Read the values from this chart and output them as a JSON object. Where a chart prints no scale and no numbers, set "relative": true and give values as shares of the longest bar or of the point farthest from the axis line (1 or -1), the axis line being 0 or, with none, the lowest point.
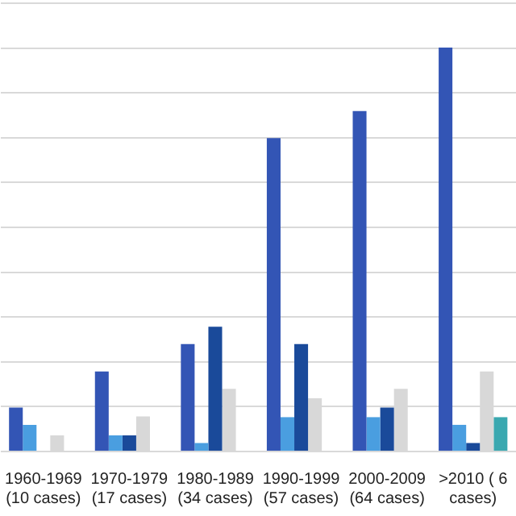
{
  "chart_data": {
    "type": "bar",
    "relative": true,
    "grid": "y",
    "legend": false,
    "tick_labels": "x",
    "categories": [
      "1960-1969\n(10 cases)",
      "1970-1979\n(17 cases)",
      "1980-1989\n(34 cases)",
      "1990-1999\n(57 cases)",
      "2000-2009\n(64 cases)",
      ">2010 ( 6\ncases)"
    ],
    "series": [
      {
        "color": "#3355b5",
        "values": [
          0.109,
          0.198,
          0.266,
          0.776,
          0.843,
          1
        ]
      },
      {
        "color": "#4a9ee0",
        "values": [
          0.066,
          0.04,
          0.021,
          0.085,
          0.085,
          0.066
        ]
      },
      {
        "color": "#1a4a9a",
        "values": [
          0,
          0.04,
          0.309,
          0.266,
          0.109,
          0.021
        ]
      },
      {
        "color": "#d8d8d8",
        "values": [
          0.04,
          0.087,
          0.155,
          0.132,
          0.155,
          0.198
        ]
      },
      {
        "color": "#3aa8b0",
        "values": [
          null,
          null,
          null,
          null,
          null,
          0.085
        ]
      }
    ]
  }
}
